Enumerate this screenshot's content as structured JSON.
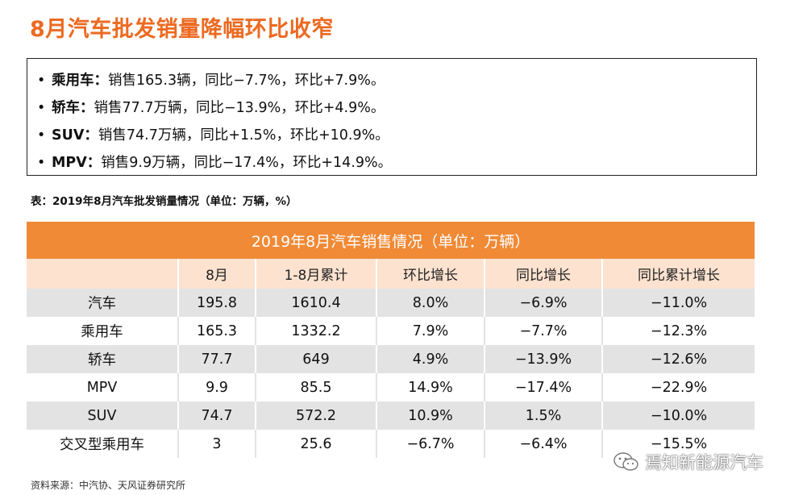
{
  "title": "8月汽车批发销量降幅环比收窄",
  "summary": [
    {
      "label": "乘用车：",
      "text": "销售165.3辆，同比−7.7%，环比+7.9%。"
    },
    {
      "label": "轿车：",
      "text": "销售77.7万辆，同比−13.9%，环比+4.9%。"
    },
    {
      "label": "SUV：",
      "text": "销售74.7万辆，同比+1.5%，环比+10.9%。"
    },
    {
      "label": "MPV：",
      "text": "销售9.9万辆，同比−17.4%，环比+14.9%。"
    }
  ],
  "bullet": "•",
  "caption": "表：2019年8月汽车批发销量情况（单位：万辆，%）",
  "table": {
    "title": "2019年8月汽车销售情况（单位：万辆）",
    "headers": [
      "",
      "8月",
      "1-8月累计",
      "环比增长",
      "同比增长",
      "同比累计增长"
    ],
    "rows": [
      [
        "汽车",
        "195.8",
        "1610.4",
        "8.0%",
        "−6.9%",
        "−11.0%"
      ],
      [
        "乘用车",
        "165.3",
        "1332.2",
        "7.9%",
        "−7.7%",
        "−12.3%"
      ],
      [
        "轿车",
        "77.7",
        "649",
        "4.9%",
        "−13.9%",
        "−12.6%"
      ],
      [
        "MPV",
        "9.9",
        "85.5",
        "14.9%",
        "−17.4%",
        "−22.9%"
      ],
      [
        "SUV",
        "74.7",
        "572.2",
        "10.9%",
        "1.5%",
        "−10.0%"
      ],
      [
        "交叉型乘用车",
        "3",
        "25.6",
        "−6.7%",
        "−6.4%",
        "−15.5%"
      ]
    ]
  },
  "source": "资料来源：中汽协、天风证券研究所",
  "watermark": "焉知新能源汽车",
  "colors": {
    "accent": "#ec6a21",
    "header_bg": "#f08a36",
    "subheader_bg": "#fce2cf",
    "stripe": "#e3e3e3"
  }
}
